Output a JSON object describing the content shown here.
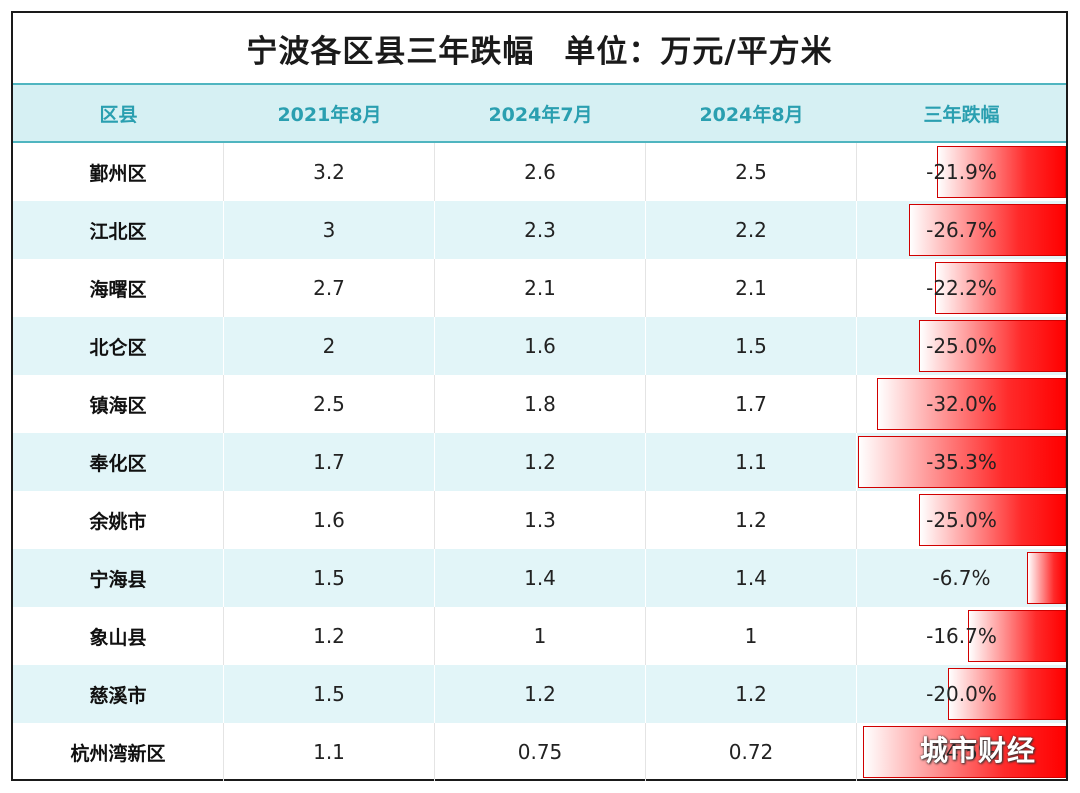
{
  "title": {
    "main": "宁波各区县三年跌幅",
    "unit": "单位：万元/平方米"
  },
  "headers": [
    "区县",
    "2021年8月",
    "2024年7月",
    "2024年8月",
    "三年跌幅"
  ],
  "rows": [
    {
      "name": "鄞州区",
      "v2021_8": "3.2",
      "v2024_7": "2.6",
      "v2024_8": "2.5",
      "drop": "-21.9%",
      "drop_value": -21.9
    },
    {
      "name": "江北区",
      "v2021_8": "3",
      "v2024_7": "2.3",
      "v2024_8": "2.2",
      "drop": "-26.7%",
      "drop_value": -26.7
    },
    {
      "name": "海曙区",
      "v2021_8": "2.7",
      "v2024_7": "2.1",
      "v2024_8": "2.1",
      "drop": "-22.2%",
      "drop_value": -22.2
    },
    {
      "name": "北仑区",
      "v2021_8": "2",
      "v2024_7": "1.6",
      "v2024_8": "1.5",
      "drop": "-25.0%",
      "drop_value": -25.0
    },
    {
      "name": "镇海区",
      "v2021_8": "2.5",
      "v2024_7": "1.8",
      "v2024_8": "1.7",
      "drop": "-32.0%",
      "drop_value": -32.0
    },
    {
      "name": "奉化区",
      "v2021_8": "1.7",
      "v2024_7": "1.2",
      "v2024_8": "1.1",
      "drop": "-35.3%",
      "drop_value": -35.3
    },
    {
      "name": "余姚市",
      "v2021_8": "1.6",
      "v2024_7": "1.3",
      "v2024_8": "1.2",
      "drop": "-25.0%",
      "drop_value": -25.0
    },
    {
      "name": "宁海县",
      "v2021_8": "1.5",
      "v2024_7": "1.4",
      "v2024_8": "1.4",
      "drop": "-6.7%",
      "drop_value": -6.7
    },
    {
      "name": "象山县",
      "v2021_8": "1.2",
      "v2024_7": "1",
      "v2024_8": "1",
      "drop": "-16.7%",
      "drop_value": -16.7
    },
    {
      "name": "慈溪市",
      "v2021_8": "1.5",
      "v2024_7": "1.2",
      "v2024_8": "1.2",
      "drop": "-20.0%",
      "drop_value": -20.0
    },
    {
      "name": "杭州湾新区",
      "v2021_8": "1.1",
      "v2024_7": "0.75",
      "v2024_8": "0.72",
      "drop": "-34.5%",
      "drop_value": -34.5
    }
  ],
  "colors": {
    "header_text": "#2a9fb0",
    "header_bg": "#d6f0f3",
    "alt_row_bg": "#e2f5f8",
    "bar_color": "#ff0000"
  },
  "watermark": "城市财经"
}
